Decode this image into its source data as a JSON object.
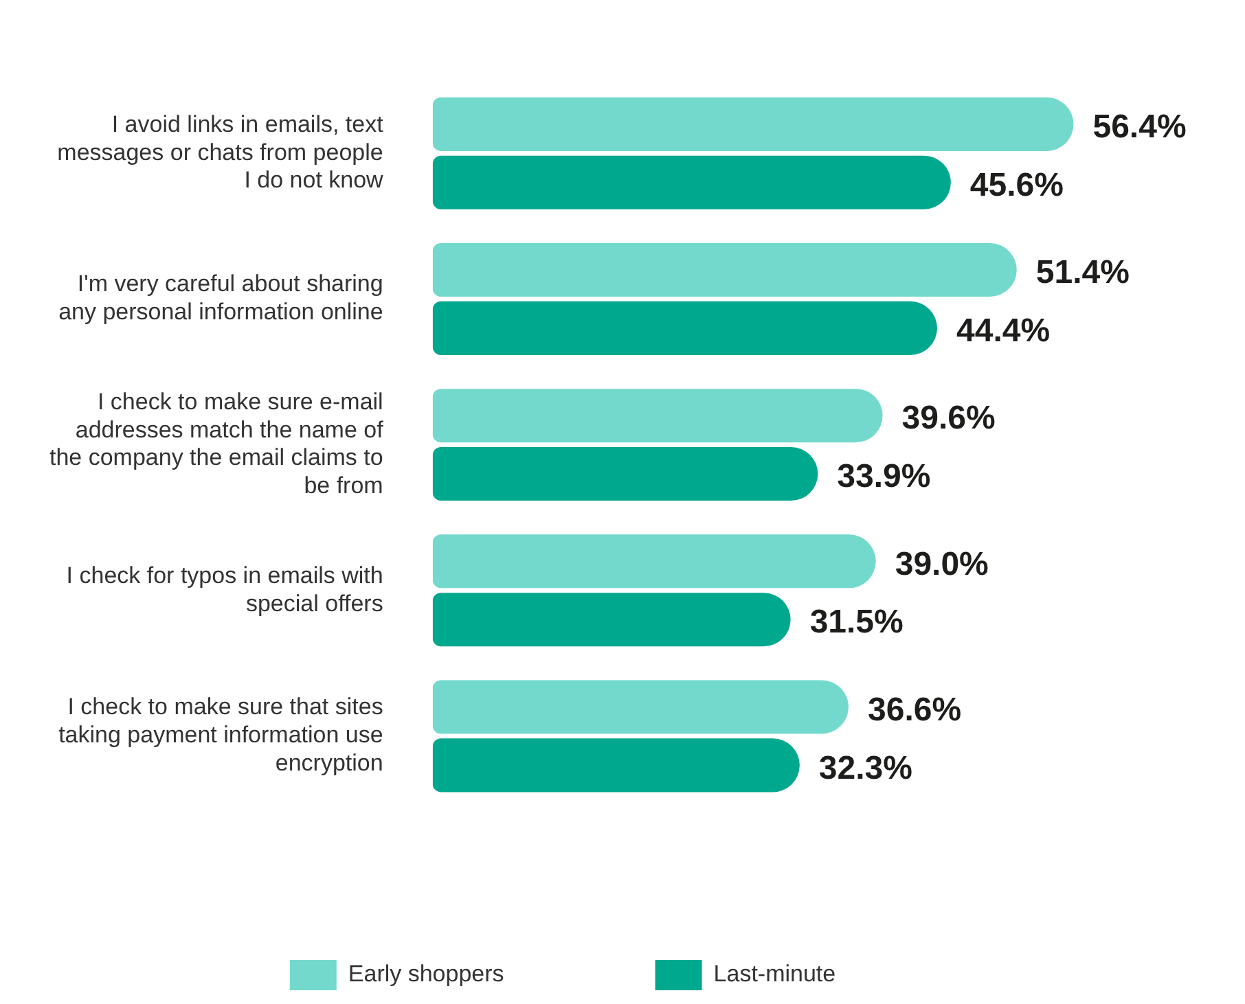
{
  "chart_data": {
    "type": "bar",
    "orientation": "horizontal",
    "categories": [
      "I avoid links in emails, text messages or chats from people I do not know",
      "I'm very careful about sharing any personal information online",
      "I check to make sure e-mail addresses match the name of the company the email claims to be from",
      "I check for typos in emails with special offers",
      "I check to make sure that sites taking payment information use encryption"
    ],
    "series": [
      {
        "name": "Early shoppers",
        "color": "#72d9cc",
        "values": [
          56.4,
          51.4,
          39.6,
          39.0,
          36.6
        ],
        "value_labels": [
          "56.4%",
          "51.4%",
          "39.6%",
          "39.0%",
          "36.6%"
        ]
      },
      {
        "name": "Last-minute",
        "color": "#00a88e",
        "values": [
          45.6,
          44.4,
          33.9,
          31.5,
          32.3
        ],
        "value_labels": [
          "45.6%",
          "44.4%",
          "33.9%",
          "31.5%",
          "32.3%"
        ]
      }
    ],
    "legend": "bottom",
    "grid": false
  }
}
